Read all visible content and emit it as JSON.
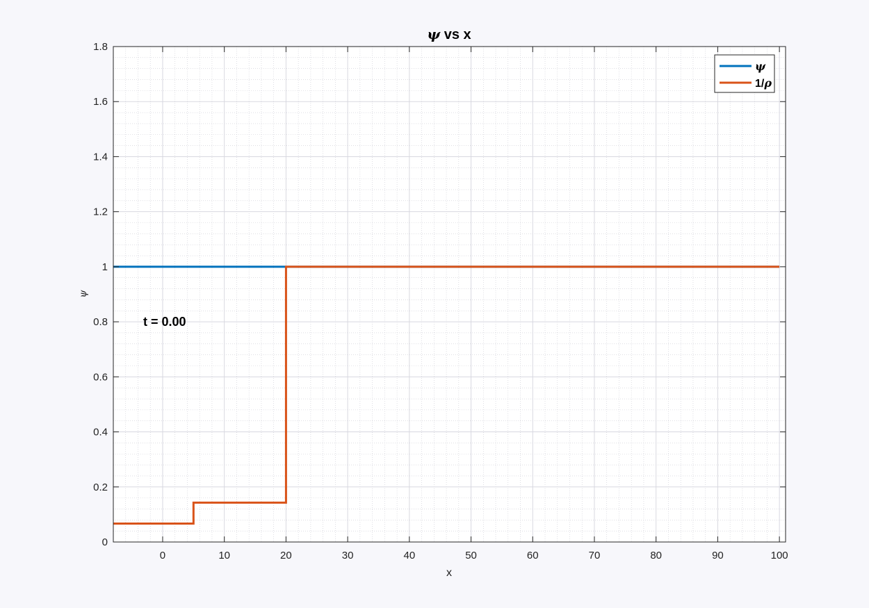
{
  "chart_data": {
    "type": "line",
    "title_symbol": "ψ",
    "title_rest": " vs x",
    "xlabel": "x",
    "ylabel": "ψ",
    "xlim": [
      -8,
      101
    ],
    "ylim": [
      0,
      1.8
    ],
    "xticks": [
      0,
      10,
      20,
      30,
      40,
      50,
      60,
      70,
      80,
      90,
      100
    ],
    "yticks": [
      0,
      0.2,
      0.4,
      0.6,
      0.8,
      1,
      1.2,
      1.4,
      1.6,
      1.8
    ],
    "ytick_labels": [
      "0",
      "0.2",
      "0.4",
      "0.6",
      "0.8",
      "1",
      "1.2",
      "1.4",
      "1.6",
      "1.8"
    ],
    "grid": true,
    "minor_grid": true,
    "legend_position": "top-right",
    "annotation": "t = 0.00",
    "series": [
      {
        "name": "ψ",
        "color": "#0072BD",
        "x": [
          -8,
          100
        ],
        "y": [
          1,
          1
        ]
      },
      {
        "name": "1/ρ",
        "color": "#D95319",
        "x": [
          -8,
          5,
          5,
          20,
          20,
          100
        ],
        "y": [
          0.067,
          0.067,
          0.143,
          0.143,
          1,
          1
        ]
      }
    ],
    "legend_labels": [
      {
        "sym": "ψ",
        "prefix": ""
      },
      {
        "sym": "ρ",
        "prefix": "1/"
      }
    ]
  }
}
